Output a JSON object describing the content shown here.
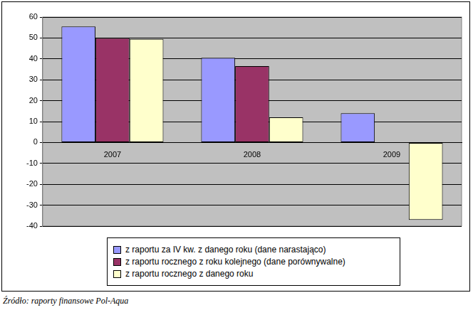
{
  "chart_data": {
    "type": "bar",
    "categories": [
      "2007",
      "2008",
      "2009"
    ],
    "series": [
      {
        "name": "z raportu za IV kw. z danego roku (dane narastająco)",
        "color": "#9999ff",
        "values": [
          55.5,
          40.5,
          14
        ]
      },
      {
        "name": "z raportu rocznego z roku kolejnego (dane porównywalne)",
        "color": "#993366",
        "values": [
          50,
          36.5,
          null
        ]
      },
      {
        "name": "z raportu rocznego z danego roku",
        "color": "#ffffcc",
        "values": [
          49.5,
          12,
          -37
        ]
      }
    ],
    "ylim": [
      -40,
      60
    ],
    "yticks": [
      -40,
      -30,
      -20,
      -10,
      0,
      10,
      20,
      30,
      40,
      50,
      60
    ],
    "grid": true,
    "legend": "bottom",
    "source": "Źródło: raporty finansowe Pol-Aqua"
  }
}
